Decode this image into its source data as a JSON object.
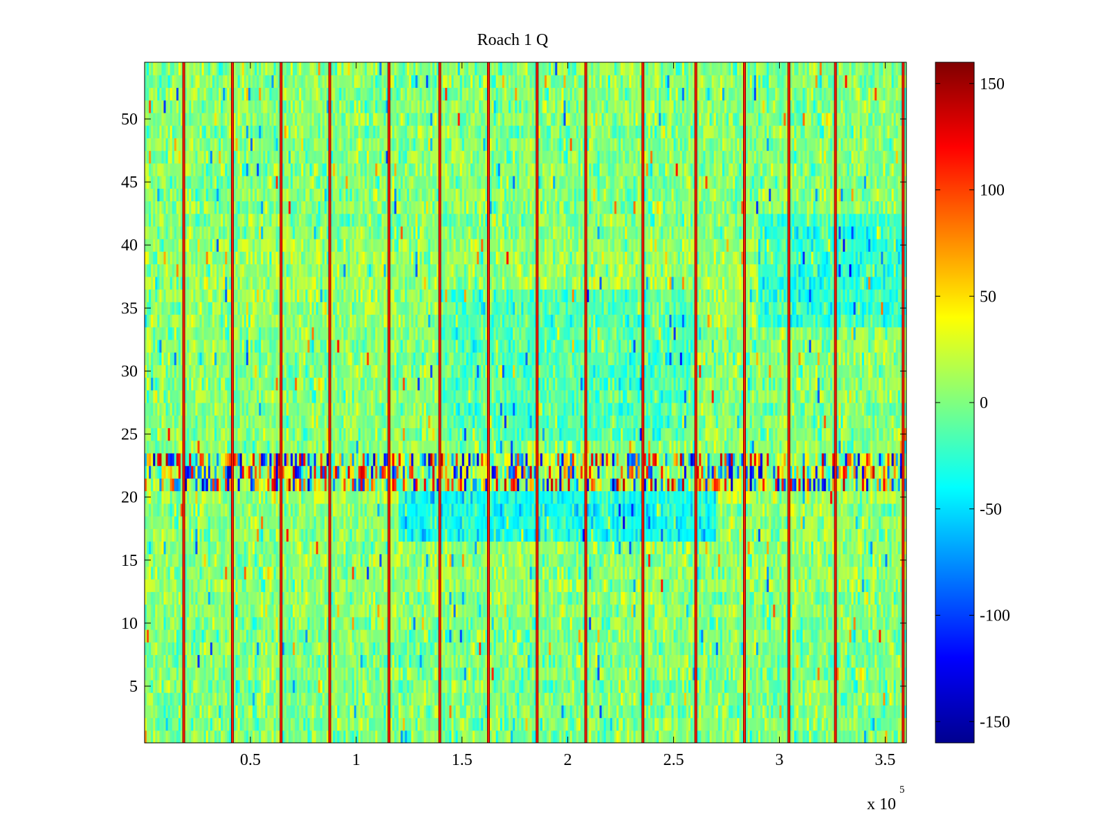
{
  "chart_data": {
    "type": "heatmap",
    "title": "Roach 1 Q",
    "xlabel": "",
    "ylabel": "",
    "x_exponent_label": "x 10",
    "x_exponent_power": "5",
    "xlim": [
      0.0,
      3.6
    ],
    "ylim": [
      0.5,
      54.5
    ],
    "x_ticks": [
      0.5,
      1,
      1.5,
      2,
      2.5,
      3,
      3.5
    ],
    "x_tick_labels": [
      "0.5",
      "1",
      "1.5",
      "2",
      "2.5",
      "3",
      "3.5"
    ],
    "y_ticks": [
      5,
      10,
      15,
      20,
      25,
      30,
      35,
      40,
      45,
      50
    ],
    "y_tick_labels": [
      "5",
      "10",
      "15",
      "20",
      "25",
      "30",
      "35",
      "40",
      "45",
      "50"
    ],
    "rows": 54,
    "colormap": "jet",
    "clim": [
      -160,
      160
    ],
    "colorbar": {
      "ticks": [
        150,
        100,
        50,
        0,
        -50,
        -100,
        -150
      ],
      "tick_labels": [
        "150",
        "100",
        "50",
        "0",
        "-50",
        "-100",
        "-150"
      ],
      "location": "right"
    },
    "vertical_stripe_x": [
      0.185,
      0.415,
      0.645,
      0.875,
      1.155,
      1.395,
      1.625,
      1.855,
      2.085,
      2.355,
      2.605,
      2.835,
      3.045,
      3.265,
      3.585
    ],
    "vertical_stripe_value": 150,
    "row_mean_profile": [
      {
        "rows": [
          1,
          10
        ],
        "mean": 0
      },
      {
        "rows": [
          11,
          19
        ],
        "mean": 5
      },
      {
        "rows": [
          20,
          20
        ],
        "mean": 12
      },
      {
        "rows": [
          21,
          23
        ],
        "mean": 10
      },
      {
        "rows": [
          24,
          33
        ],
        "mean": 3
      },
      {
        "rows": [
          34,
          40
        ],
        "mean": 8
      },
      {
        "rows": [
          41,
          54
        ],
        "mean": 2
      }
    ],
    "notable_regions": [
      {
        "rows": [
          21,
          23
        ],
        "x_range": [
          0.0,
          3.6
        ],
        "description": "high variance band with many extreme positive and negative values"
      },
      {
        "rows": [
          17,
          20
        ],
        "x_range": [
          1.2,
          2.7
        ],
        "mean": -35
      },
      {
        "rows": [
          25,
          36
        ],
        "x_range": [
          1.4,
          2.6
        ],
        "mean": -15
      },
      {
        "rows": [
          34,
          42
        ],
        "x_range": [
          2.9,
          3.6
        ],
        "mean": -25
      }
    ],
    "grid": false
  }
}
